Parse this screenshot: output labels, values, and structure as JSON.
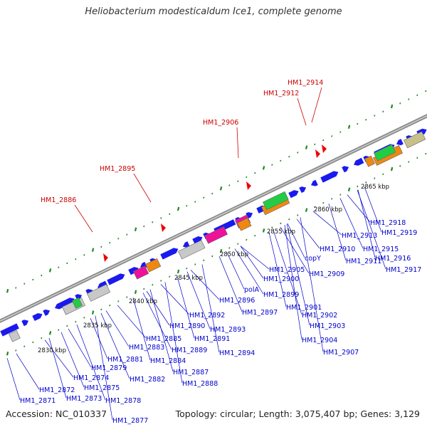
{
  "title": "Heliobacterium modesticaldum Ice1, complete genome",
  "footer": {
    "accession": "Accession: NC_010337",
    "topology": "Topology: circular; Length: 3,075,407 bp; Genes: 3,129"
  },
  "colors": {
    "gene": "#1a1aee",
    "gene_label": "#0000cc",
    "highlight_label": "#cc0000",
    "axis": "#808080",
    "tick": "#228822",
    "gray_box": "#c8c8c8",
    "magenta_box": "#ee1199",
    "orange_box": "#ee8811",
    "green_box": "#22cc44",
    "olive_box": "#c8c08a",
    "marker": "#ee0000"
  },
  "kbp_labels": [
    "2830 kbp",
    "2835 kbp",
    "2840 kbp",
    "2845 kbp",
    "2850 kbp",
    "2855 kbp",
    "2860 kbp",
    "2865 kbp"
  ],
  "gene_labels": [
    "HM1_2871",
    "HM1_2872",
    "HM1_2873",
    "HM1_2874",
    "HM1_2875",
    "HM1_2877",
    "HM1_2878",
    "HM1_2879",
    "HM1_2881",
    "HM1_2882",
    "HM1_2883",
    "HM1_2884",
    "HM1_2885",
    "HM1_2887",
    "HM1_2888",
    "HM1_2889",
    "HM1_2890",
    "HM1_2891",
    "HM1_2892",
    "HM1_2893",
    "HM1_2894",
    "HM1_2896",
    "HM1_2897",
    "polA",
    "HM1_2899",
    "HM1_2900",
    "HM1_2901",
    "HM1_2902",
    "HM1_2903",
    "HM1_2904",
    "HM1_2905",
    "HM1_2907",
    "copY",
    "HM1_2909",
    "HM1_2910",
    "HM1_2911",
    "HM1_2913",
    "HM1_2915",
    "HM1_2916",
    "HM1_2917",
    "HM1_2918",
    "HM1_2919"
  ],
  "highlight_labels": [
    "HM1_2886",
    "HM1_2895",
    "HM1_2906",
    "HM1_2912",
    "HM1_2914"
  ]
}
